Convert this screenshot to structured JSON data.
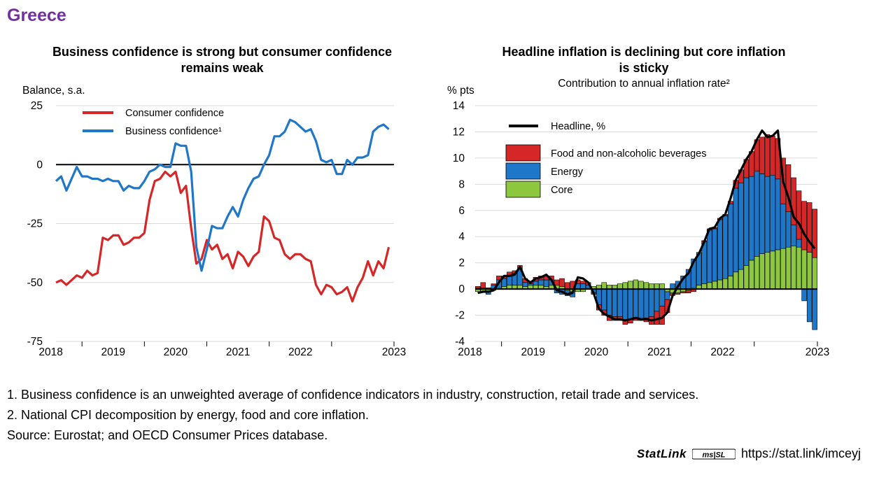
{
  "country": "Greece",
  "left_chart": {
    "title_line1": "Business confidence is strong but consumer confidence",
    "title_line2": "remains weak",
    "unit": "Balance, s.a."
  },
  "right_chart": {
    "title_line1": "Headline inflation is declining but core inflation",
    "title_line2": "is sticky",
    "subtitle": "Contribution to annual inflation rate²",
    "unit": "% pts"
  },
  "notes": [
    "1. Business confidence is an unweighted average of confidence indicators in industry, construction, retail trade and services.",
    "2. National CPI decomposition by energy, food and core inflation.",
    "Source: Eurostat; and OECD Consumer Prices database."
  ],
  "statlink": {
    "label": "StatLink",
    "badge": "ms|SL",
    "url": "https://stat.link/imceyj"
  },
  "colors": {
    "red": "#d62728",
    "blue": "#1f77c9",
    "green": "#8dc63f",
    "black": "#000000",
    "title": "#7030a0",
    "grid": "#d9d9d9"
  },
  "chart_data": [
    {
      "type": "line",
      "title": "Business confidence is strong but consumer confidence remains weak",
      "ylabel": "Balance, s.a.",
      "ylim": [
        -75,
        25
      ],
      "yticks": [
        25,
        0,
        -25,
        -50,
        -75
      ],
      "ytick_labels": [
        "25",
        "0",
        "-25",
        "-50",
        "-75"
      ],
      "xlim": [
        2017.583,
        2023.0
      ],
      "xticks": [
        "2018",
        "2019",
        "2020",
        "2021",
        "2022",
        "2023"
      ],
      "legend": "top-left",
      "series": [
        {
          "name": "Consumer confidence",
          "color": "#d62728",
          "x_start": 2017.583,
          "step": 0.08333,
          "values": [
            -50,
            -49,
            -51,
            -49,
            -47,
            -48,
            -45,
            -47,
            -46,
            -31,
            -32,
            -30,
            -30,
            -34,
            -33,
            -31,
            -31,
            -29,
            -15,
            -7,
            -6,
            -3,
            -5,
            -3,
            -12,
            -9,
            -27,
            -42,
            -40,
            -32,
            -36,
            -34,
            -40,
            -38,
            -44,
            -37,
            -39,
            -43,
            -39,
            -37,
            -22,
            -24,
            -31,
            -32,
            -38,
            -40,
            -38,
            -38,
            -40,
            -41,
            -51,
            -55,
            -51,
            -52,
            -55,
            -54,
            -52,
            -58,
            -52,
            -48,
            -41,
            -47,
            -41,
            -44,
            -35
          ]
        },
        {
          "name": "Business confidence¹",
          "color": "#1f77c9",
          "x_start": 2017.583,
          "step": 0.08333,
          "values": [
            -7,
            -5,
            -11,
            -6,
            -1,
            -5,
            -5,
            -6,
            -6,
            -7,
            -6,
            -7,
            -7,
            -11,
            -9,
            -10,
            -10,
            -7,
            -3,
            -2,
            0,
            -1,
            -1,
            9,
            8,
            8,
            -3,
            -35,
            -45,
            -36,
            -26,
            -27,
            -27,
            -22,
            -18,
            -22,
            -15,
            -10,
            -6,
            -5,
            0,
            4,
            12,
            12,
            14,
            19,
            18,
            16,
            14,
            15,
            10,
            2,
            1,
            2,
            -4,
            -4,
            2,
            0,
            3,
            3,
            4,
            14,
            16,
            17,
            15
          ]
        }
      ]
    },
    {
      "type": "bar",
      "stacked": true,
      "title": "Headline inflation is declining but core inflation is sticky",
      "subtitle": "Contribution to annual inflation rate²",
      "ylabel": "% pts",
      "ylim": [
        -4,
        14
      ],
      "yticks": [
        14,
        12,
        10,
        8,
        6,
        4,
        2,
        0,
        -2,
        -4
      ],
      "ytick_labels": [
        "14",
        "12",
        "10",
        "8",
        "6",
        "4",
        "2",
        "0",
        "-2",
        "-4"
      ],
      "xlim": [
        2017.583,
        2023.0
      ],
      "xticks": [
        "2018",
        "2019",
        "2020",
        "2021",
        "2022",
        "2023"
      ],
      "legend": "top-left",
      "x_start": 2017.583,
      "step": 0.08333,
      "series": [
        {
          "name": "Core",
          "color": "#8dc63f",
          "values": [
            -0.2,
            -0.2,
            -0.2,
            -0.1,
            0.1,
            0.2,
            0.3,
            0.3,
            0.3,
            0.2,
            0.3,
            0.3,
            0.3,
            0.2,
            0.3,
            0.3,
            0.2,
            -0.1,
            -0.2,
            -0.2,
            -0.2,
            0.1,
            0.2,
            0.3,
            0.5,
            0.3,
            0.3,
            0.4,
            0.5,
            0.6,
            0.7,
            0.6,
            0.5,
            0.4,
            0.4,
            0.4,
            -0.2,
            -0.3,
            -0.3,
            -0.2,
            -0.1,
            0.1,
            0.3,
            0.4,
            0.5,
            0.6,
            0.7,
            0.8,
            1.0,
            1.3,
            1.5,
            1.8,
            2.2,
            2.5,
            2.7,
            2.8,
            2.9,
            3.0,
            3.1,
            3.2,
            3.3,
            3.2,
            3.0,
            2.8,
            2.4
          ]
        },
        {
          "name": "Energy",
          "color": "#1f77c9",
          "values": [
            0.1,
            0.1,
            -0.2,
            0.3,
            0.6,
            0.6,
            0.7,
            0.9,
            1.2,
            0.3,
            0.1,
            0.3,
            0.4,
            0.5,
            0.4,
            -0.3,
            -0.4,
            -0.4,
            -0.4,
            0.4,
            0.4,
            0.2,
            -0.3,
            -1.2,
            -1.6,
            -2.0,
            -2.1,
            -2.1,
            -2.4,
            -2.3,
            -2.2,
            -2.3,
            -2.2,
            -2.1,
            -1.7,
            -1.3,
            -0.6,
            0.4,
            0.6,
            1.0,
            1.5,
            2.2,
            2.5,
            3.2,
            4.0,
            4.0,
            4.6,
            4.8,
            5.5,
            6.4,
            6.6,
            6.7,
            6.4,
            6.5,
            6.1,
            5.8,
            5.8,
            5.4,
            3.4,
            2.7,
            1.6,
            0.6,
            -0.9,
            -2.5,
            -3.1
          ]
        },
        {
          "name": "Food and non-alcoholic beverages",
          "color": "#d62728",
          "values": [
            0.1,
            0.4,
            0.1,
            0.1,
            0.3,
            0.2,
            0.3,
            0.2,
            0.3,
            0.3,
            0.2,
            0.3,
            0.3,
            0.3,
            0.3,
            0.4,
            0.6,
            0.5,
            0.6,
            0.3,
            0.2,
            0.2,
            -0.1,
            -0.4,
            -0.4,
            -0.4,
            -0.3,
            -0.3,
            -0.3,
            -0.3,
            -0.2,
            -0.1,
            -0.3,
            -0.6,
            -1.0,
            -1.4,
            -1.0,
            -0.2,
            -0.1,
            -0.1,
            -0.2,
            -0.2,
            0.0,
            0.1,
            0.1,
            0.1,
            0.1,
            0.1,
            0.2,
            0.6,
            1.0,
            1.4,
            1.9,
            2.4,
            2.8,
            3.2,
            3.0,
            3.1,
            3.5,
            3.6,
            3.6,
            3.7,
            3.7,
            3.8,
            3.7
          ]
        },
        {
          "name": "Headline, %",
          "type": "line",
          "color": "#000000",
          "values": [
            -0.3,
            -0.2,
            -0.2,
            -0.1,
            0.5,
            1.0,
            1.0,
            1.1,
            1.7,
            0.8,
            0.5,
            0.8,
            0.9,
            1.1,
            0.7,
            -0.1,
            -0.2,
            -0.4,
            -0.3,
            0.9,
            0.8,
            0.5,
            -0.3,
            -1.5,
            -1.9,
            -2.1,
            -2.3,
            -2.3,
            -2.4,
            -2.3,
            -2.2,
            -2.3,
            -2.3,
            -2.4,
            -2.3,
            -2.2,
            -1.8,
            -0.5,
            0.2,
            0.8,
            1.2,
            2.1,
            2.7,
            3.6,
            4.6,
            4.7,
            5.4,
            5.7,
            6.9,
            8.3,
            9.1,
            9.9,
            10.5,
            11.4,
            12.1,
            11.6,
            11.7,
            12.1,
            8.2,
            7.0,
            5.5,
            5.0,
            4.2,
            3.6,
            3.1
          ]
        }
      ]
    }
  ]
}
